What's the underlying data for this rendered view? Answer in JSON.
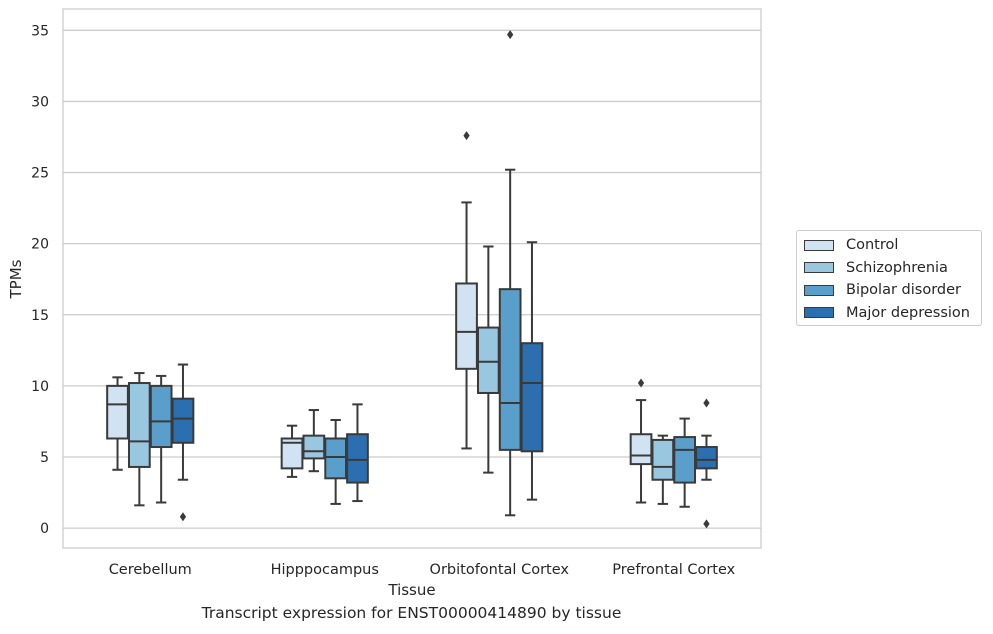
{
  "caption": "Transcript expression for ENST00000414890 by tissue",
  "chart_data": {
    "type": "box",
    "title": "",
    "xlabel": "Tissue",
    "ylabel": "TPMs",
    "ylim": [
      -1.4,
      36.5
    ],
    "yticks": [
      0,
      5,
      10,
      15,
      20,
      25,
      30,
      35
    ],
    "grid": true,
    "legend_position": "right-outside",
    "categories": [
      "Cerebellum",
      "Hipppocampus",
      "Orbitofontal Cortex",
      "Prefrontal Cortex"
    ],
    "series": [
      {
        "name": "Control",
        "color": "#d1e2f2",
        "boxes": [
          {
            "whislo": 4.1,
            "q1": 6.3,
            "med": 8.7,
            "q3": 10.0,
            "whishi": 10.6,
            "fliers": []
          },
          {
            "whislo": 3.6,
            "q1": 4.2,
            "med": 6.0,
            "q3": 6.3,
            "whishi": 7.2,
            "fliers": []
          },
          {
            "whislo": 5.6,
            "q1": 11.2,
            "med": 13.8,
            "q3": 17.2,
            "whishi": 22.9,
            "fliers": [
              27.6
            ]
          },
          {
            "whislo": 1.8,
            "q1": 4.5,
            "med": 5.1,
            "q3": 6.6,
            "whishi": 9.0,
            "fliers": [
              10.2
            ]
          }
        ]
      },
      {
        "name": "Schizophrenia",
        "color": "#9ac7e0",
        "boxes": [
          {
            "whislo": 1.6,
            "q1": 4.3,
            "med": 6.1,
            "q3": 10.2,
            "whishi": 10.9,
            "fliers": []
          },
          {
            "whislo": 4.0,
            "q1": 4.9,
            "med": 5.4,
            "q3": 6.5,
            "whishi": 8.3,
            "fliers": []
          },
          {
            "whislo": 3.9,
            "q1": 9.5,
            "med": 11.7,
            "q3": 14.1,
            "whishi": 19.8,
            "fliers": []
          },
          {
            "whislo": 1.7,
            "q1": 3.4,
            "med": 4.3,
            "q3": 6.2,
            "whishi": 6.5,
            "fliers": []
          }
        ]
      },
      {
        "name": "Bipolar disorder",
        "color": "#5a9fcb",
        "boxes": [
          {
            "whislo": 1.8,
            "q1": 5.7,
            "med": 7.5,
            "q3": 10.0,
            "whishi": 10.7,
            "fliers": []
          },
          {
            "whislo": 1.7,
            "q1": 3.5,
            "med": 5.0,
            "q3": 6.3,
            "whishi": 7.6,
            "fliers": []
          },
          {
            "whislo": 0.9,
            "q1": 5.5,
            "med": 8.8,
            "q3": 16.8,
            "whishi": 25.2,
            "fliers": [
              34.7
            ]
          },
          {
            "whislo": 1.5,
            "q1": 3.2,
            "med": 5.5,
            "q3": 6.4,
            "whishi": 7.7,
            "fliers": []
          }
        ]
      },
      {
        "name": "Major depression",
        "color": "#2b6fb0",
        "boxes": [
          {
            "whislo": 3.4,
            "q1": 6.0,
            "med": 7.7,
            "q3": 9.1,
            "whishi": 11.5,
            "fliers": [
              0.8
            ]
          },
          {
            "whislo": 1.9,
            "q1": 3.2,
            "med": 4.8,
            "q3": 6.6,
            "whishi": 8.7,
            "fliers": []
          },
          {
            "whislo": 2.0,
            "q1": 5.4,
            "med": 10.2,
            "q3": 13.0,
            "whishi": 20.1,
            "fliers": []
          },
          {
            "whislo": 3.4,
            "q1": 4.2,
            "med": 4.8,
            "q3": 5.7,
            "whishi": 6.5,
            "fliers": [
              0.3,
              8.8
            ]
          }
        ]
      }
    ]
  }
}
